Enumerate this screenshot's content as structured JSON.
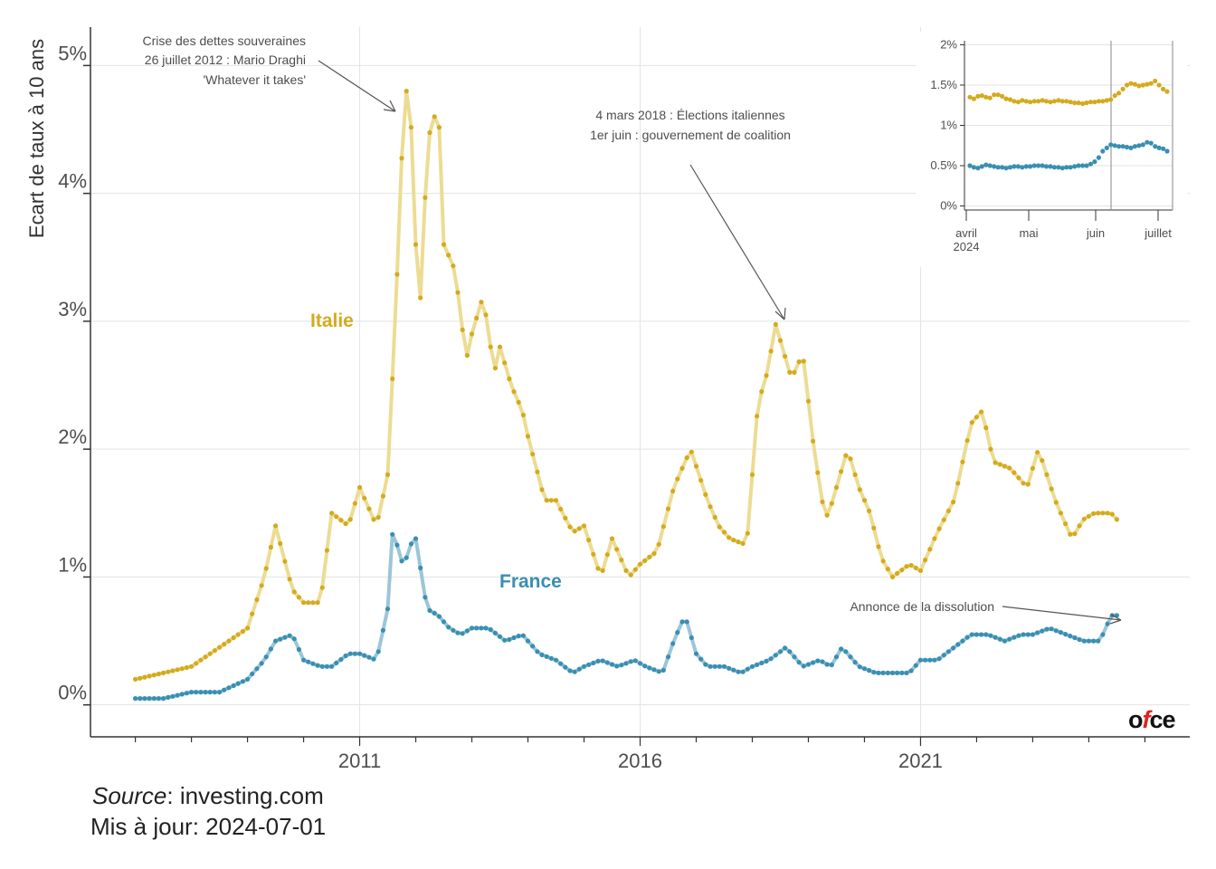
{
  "chart_data": [
    {
      "type": "line",
      "ylabel": "Ecart de taux à 10 ans",
      "xlabel": "",
      "y_tick_labels": [
        "0%",
        "1%",
        "2%",
        "3%",
        "4%",
        "5%"
      ],
      "y_tick_values": [
        0,
        1,
        2,
        3,
        4,
        5
      ],
      "x_tick_labels": [
        "2011",
        "2016",
        "2021"
      ],
      "x_tick_values": [
        2011,
        2016,
        2021
      ],
      "xlim": [
        2006.2,
        2025.8
      ],
      "ylim": [
        -0.25,
        5.3
      ],
      "grid": true,
      "series": [
        {
          "name": "Italie",
          "color": "#d4aa1e",
          "line_color": "#ecdc93",
          "x": [
            2007.0,
            2008.0,
            2009.0,
            2009.3,
            2009.5,
            2009.8,
            2010.0,
            2010.3,
            2010.5,
            2010.8,
            2011.0,
            2011.3,
            2011.5,
            2011.6,
            2011.7,
            2011.8,
            2011.9,
            2012.0,
            2012.1,
            2012.2,
            2012.4,
            2012.5,
            2012.7,
            2012.9,
            2013.0,
            2013.2,
            2013.4,
            2013.5,
            2013.7,
            2013.9,
            2014.0,
            2014.3,
            2014.5,
            2014.8,
            2015.0,
            2015.3,
            2015.5,
            2015.8,
            2016.0,
            2016.3,
            2016.6,
            2016.9,
            2017.2,
            2017.4,
            2017.6,
            2017.9,
            2018.1,
            2018.3,
            2018.4,
            2018.7,
            2018.9,
            2019.1,
            2019.3,
            2019.4,
            2019.7,
            2019.9,
            2020.1,
            2020.3,
            2020.5,
            2020.8,
            2021.0,
            2021.3,
            2021.6,
            2021.9,
            2022.1,
            2022.3,
            2022.6,
            2022.9,
            2023.1,
            2023.4,
            2023.7,
            2023.9,
            2024.1,
            2024.4,
            2024.5
          ],
          "values": [
            0.2,
            0.3,
            0.6,
            1.0,
            1.4,
            0.9,
            0.8,
            0.8,
            1.5,
            1.4,
            1.7,
            1.4,
            1.8,
            2.7,
            3.7,
            4.85,
            4.7,
            3.6,
            3.1,
            4.4,
            4.7,
            3.6,
            3.4,
            2.7,
            2.9,
            3.2,
            2.6,
            2.8,
            2.5,
            2.3,
            2.1,
            1.6,
            1.6,
            1.35,
            1.4,
            1.0,
            1.3,
            1.0,
            1.1,
            1.2,
            1.7,
            2.0,
            1.6,
            1.4,
            1.3,
            1.25,
            2.35,
            2.65,
            3.0,
            2.55,
            2.75,
            2.0,
            1.45,
            1.55,
            2.0,
            1.7,
            1.5,
            1.15,
            1.0,
            1.1,
            1.05,
            1.35,
            1.6,
            2.2,
            2.3,
            1.9,
            1.85,
            1.7,
            2.0,
            1.6,
            1.3,
            1.45,
            1.5,
            1.5,
            1.45
          ]
        },
        {
          "name": "France",
          "color": "#3a8fb1",
          "line_color": "#9bc6d8",
          "x": [
            2007.0,
            2007.5,
            2008.0,
            2008.5,
            2009.0,
            2009.3,
            2009.5,
            2009.8,
            2010.0,
            2010.3,
            2010.5,
            2010.8,
            2011.0,
            2011.3,
            2011.5,
            2011.6,
            2011.7,
            2011.8,
            2011.9,
            2012.0,
            2012.2,
            2012.4,
            2012.6,
            2012.8,
            2013.0,
            2013.3,
            2013.6,
            2013.9,
            2014.2,
            2014.5,
            2014.8,
            2015.0,
            2015.3,
            2015.6,
            2015.9,
            2016.1,
            2016.4,
            2016.6,
            2016.8,
            2017.0,
            2017.2,
            2017.5,
            2017.8,
            2018.0,
            2018.3,
            2018.6,
            2018.9,
            2019.2,
            2019.4,
            2019.6,
            2019.9,
            2020.2,
            2020.5,
            2020.8,
            2021.0,
            2021.3,
            2021.6,
            2021.9,
            2022.2,
            2022.5,
            2022.8,
            2023.0,
            2023.3,
            2023.6,
            2023.9,
            2024.2,
            2024.4,
            2024.5
          ],
          "values": [
            0.05,
            0.05,
            0.1,
            0.1,
            0.2,
            0.35,
            0.5,
            0.55,
            0.35,
            0.3,
            0.3,
            0.4,
            0.4,
            0.35,
            0.75,
            1.45,
            1.15,
            1.1,
            1.25,
            1.3,
            0.75,
            0.7,
            0.6,
            0.55,
            0.6,
            0.6,
            0.5,
            0.55,
            0.4,
            0.35,
            0.25,
            0.3,
            0.35,
            0.3,
            0.35,
            0.3,
            0.25,
            0.5,
            0.7,
            0.4,
            0.3,
            0.3,
            0.25,
            0.3,
            0.35,
            0.45,
            0.3,
            0.35,
            0.3,
            0.45,
            0.3,
            0.25,
            0.25,
            0.25,
            0.35,
            0.35,
            0.45,
            0.55,
            0.55,
            0.5,
            0.55,
            0.55,
            0.6,
            0.55,
            0.5,
            0.5,
            0.7,
            0.7
          ]
        }
      ],
      "series_labels": [
        "Italie",
        "France"
      ],
      "annotations": [
        {
          "lines": [
            "Crise des dettes souveraines",
            "26 juillet 2012 : Mario Draghi",
            "'Whatever it takes'"
          ],
          "x": 2011.5,
          "y": 4.6
        },
        {
          "lines": [
            "4 mars 2018 : Élections italiennes",
            "1er juin : gouvernement de coalition"
          ],
          "x": 2018.3,
          "y": 2.95
        },
        {
          "lines": [
            "Annonce de la dissolution"
          ],
          "x": 2024.4,
          "y": 0.7
        }
      ]
    },
    {
      "type": "line",
      "title": "",
      "y_tick_labels": [
        "0%",
        "0.5%",
        "1%",
        "1.5%",
        "2%"
      ],
      "y_tick_values": [
        0,
        0.5,
        1,
        1.5,
        2
      ],
      "x_tick_labels": [
        "avril",
        "2024",
        "mai",
        "juin",
        "juillet"
      ],
      "xlim": [
        0,
        100
      ],
      "ylim": [
        -0.05,
        2.05
      ],
      "grid": true,
      "vertical_markers": [
        "dissolution",
        "mise à jour"
      ],
      "series": [
        {
          "name": "Italie",
          "color": "#d4aa1e",
          "values": [
            1.35,
            1.33,
            1.36,
            1.37,
            1.35,
            1.34,
            1.38,
            1.38,
            1.36,
            1.33,
            1.32,
            1.3,
            1.29,
            1.31,
            1.3,
            1.29,
            1.3,
            1.3,
            1.31,
            1.3,
            1.29,
            1.3,
            1.31,
            1.3,
            1.3,
            1.29,
            1.28,
            1.28,
            1.27,
            1.28,
            1.29,
            1.29,
            1.3,
            1.3,
            1.31,
            1.32,
            1.37,
            1.4,
            1.45,
            1.5,
            1.52,
            1.51,
            1.49,
            1.5,
            1.51,
            1.52,
            1.55,
            1.5,
            1.45,
            1.42
          ]
        },
        {
          "name": "France",
          "color": "#3a8fb1",
          "values": [
            0.5,
            0.48,
            0.47,
            0.49,
            0.51,
            0.5,
            0.49,
            0.48,
            0.48,
            0.47,
            0.48,
            0.49,
            0.49,
            0.48,
            0.49,
            0.49,
            0.5,
            0.5,
            0.5,
            0.49,
            0.49,
            0.48,
            0.48,
            0.47,
            0.48,
            0.48,
            0.49,
            0.5,
            0.5,
            0.5,
            0.52,
            0.55,
            0.6,
            0.68,
            0.72,
            0.76,
            0.75,
            0.74,
            0.74,
            0.73,
            0.72,
            0.74,
            0.75,
            0.76,
            0.79,
            0.78,
            0.74,
            0.72,
            0.71,
            0.68
          ]
        }
      ]
    }
  ],
  "footer": {
    "source_label": "Source",
    "source_value": ": investing.com",
    "updated_label": "Mis à jour",
    "updated_value": ": 2024-07-01"
  },
  "logo": {
    "o": "o",
    "f": "f",
    "ce": "ce"
  },
  "colors": {
    "italie": "#d4aa1e",
    "france": "#3a8fb1",
    "grid": "#e3e3e3",
    "axis": "#333333"
  }
}
